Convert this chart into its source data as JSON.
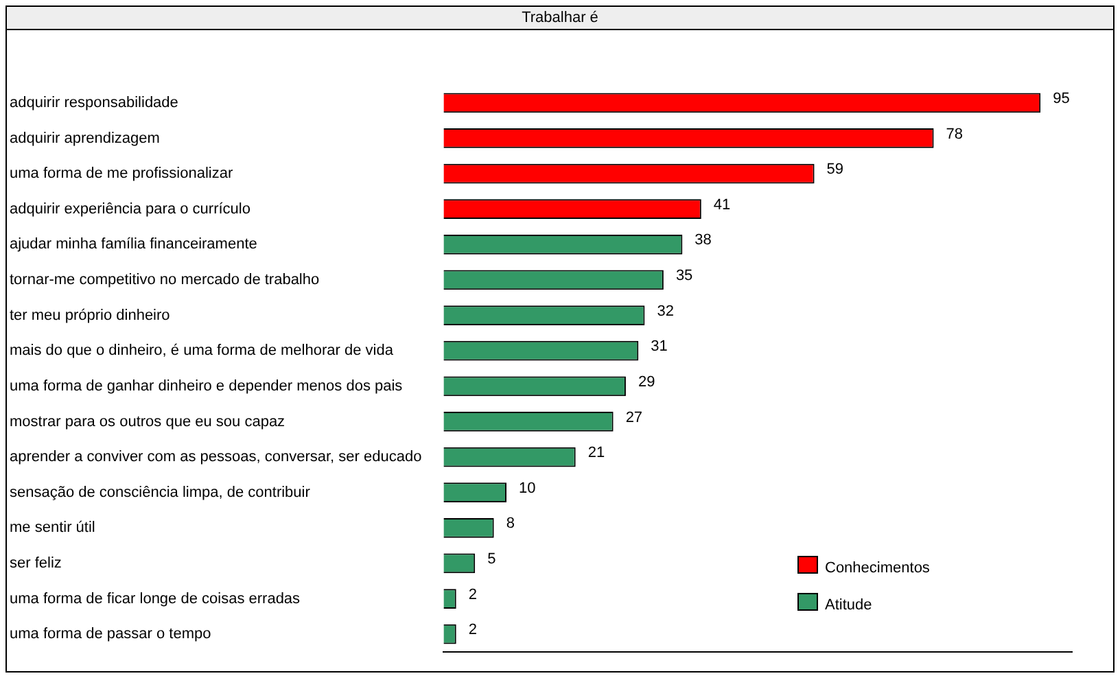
{
  "chart_data": {
    "type": "bar",
    "orientation": "horizontal",
    "title": "Trabalhar é",
    "categories": [
      "adquirir responsabilidade",
      "adquirir aprendizagem",
      "uma forma de me profissionalizar",
      "adquirir experiência para o currículo",
      "ajudar minha família financeiramente",
      "tornar-me competitivo no mercado de trabalho",
      "ter meu próprio dinheiro",
      "mais do que o dinheiro, é uma forma de melhorar de vida",
      "uma forma de ganhar dinheiro e depender menos dos pais",
      "mostrar para os outros que eu sou capaz",
      "aprender a conviver com as pessoas, conversar, ser educado",
      "sensação de consciência limpa, de contribuir",
      "me sentir útil",
      "ser feliz",
      "uma forma de ficar longe de coisas erradas",
      "uma forma de passar o tempo"
    ],
    "series": [
      {
        "name": "Conhecimentos",
        "color": "#ff0000",
        "values": [
          95,
          78,
          59,
          41,
          null,
          null,
          null,
          null,
          null,
          null,
          null,
          null,
          null,
          null,
          null,
          null
        ]
      },
      {
        "name": "Atitude",
        "color": "#339966",
        "values": [
          null,
          null,
          null,
          null,
          38,
          35,
          32,
          31,
          29,
          27,
          21,
          10,
          8,
          5,
          2,
          2
        ]
      }
    ],
    "data_labels": true,
    "legend": "bottom right",
    "grid": false
  }
}
